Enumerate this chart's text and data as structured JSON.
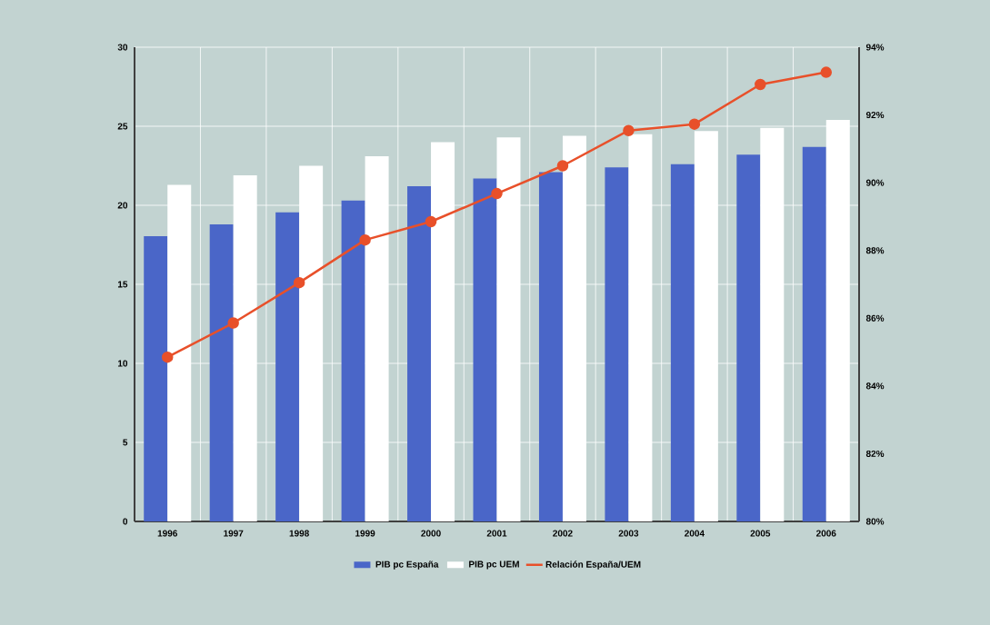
{
  "chart_data": {
    "type": "bar",
    "categories": [
      "1996",
      "1997",
      "1998",
      "1999",
      "2000",
      "2001",
      "2002",
      "2003",
      "2004",
      "2005",
      "2006"
    ],
    "series": [
      {
        "name": "PIB pc España",
        "color": "#4a66c8",
        "values": [
          18.05,
          18.8,
          19.55,
          20.3,
          21.2,
          21.7,
          22.1,
          22.4,
          22.6,
          23.2,
          23.7
        ]
      },
      {
        "name": "PIB pc UEM",
        "color": "#ffffff",
        "values": [
          21.3,
          21.9,
          22.5,
          23.1,
          24.0,
          24.3,
          24.4,
          24.5,
          24.7,
          24.9,
          25.4
        ]
      },
      {
        "name": "Relación España/UEM",
        "type": "line",
        "axis": "y2",
        "color": "#e8502a",
        "marker": "circle",
        "values": [
          84.85,
          85.86,
          87.05,
          88.31,
          88.85,
          89.68,
          90.5,
          91.54,
          91.73,
          92.9,
          93.26
        ]
      }
    ],
    "ylim": [
      0,
      30
    ],
    "yticks": [
      0,
      5,
      10,
      15,
      20,
      25,
      30
    ],
    "y2lim": [
      80,
      94
    ],
    "y2ticks": [
      {
        "value": 80,
        "label": "80%"
      },
      {
        "value": 82,
        "label": "82%"
      },
      {
        "value": 84,
        "label": "84%"
      },
      {
        "value": 86,
        "label": "86%"
      },
      {
        "value": 88,
        "label": "88%"
      },
      {
        "value": 90,
        "label": "90%"
      },
      {
        "value": 92,
        "label": "92%"
      },
      {
        "value": 94,
        "label": "94%"
      }
    ],
    "grid": true,
    "legend": "bottom"
  }
}
